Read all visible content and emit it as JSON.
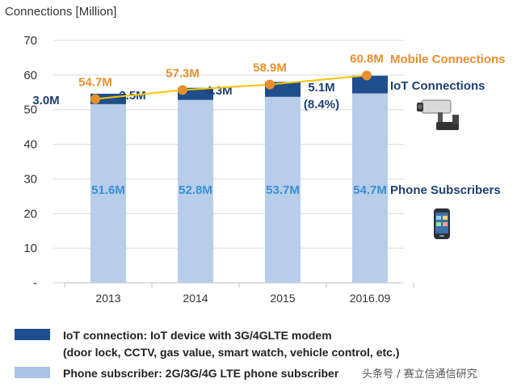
{
  "chart_data": {
    "type": "bar",
    "ylabel": "Connections [Million]",
    "ylim": [
      0,
      70
    ],
    "yticks": [
      {
        "value": 0,
        "label": "-"
      },
      {
        "value": 10,
        "label": "10"
      },
      {
        "value": 20,
        "label": "20"
      },
      {
        "value": 30,
        "label": "30"
      },
      {
        "value": 40,
        "label": "40"
      },
      {
        "value": 50,
        "label": "50"
      },
      {
        "value": 60,
        "label": "60"
      },
      {
        "value": 70,
        "label": "70"
      }
    ],
    "grid": true,
    "categories": [
      "2013",
      "2014",
      "2015",
      "2016.09"
    ],
    "series": [
      {
        "name": "Phone Subscribers",
        "type": "stacked-bar",
        "color": "#b8cde9",
        "values": [
          51.6,
          52.8,
          53.7,
          54.7
        ],
        "data_labels": [
          "51.6M",
          "52.8M",
          "53.7M",
          "54.7M"
        ]
      },
      {
        "name": "IoT Connections",
        "type": "stacked-bar",
        "color": "#1f4e8c",
        "values": [
          3.0,
          3.5,
          4.3,
          5.1
        ],
        "data_labels": [
          "3.0M",
          "3.5M",
          "4.3M",
          "5.1M"
        ],
        "extra_label": "(8.4%)"
      },
      {
        "name": "Mobile Connections",
        "type": "line",
        "color": "#e8902e",
        "values": [
          54.7,
          57.3,
          58.9,
          60.8
        ],
        "data_labels": [
          "54.7M",
          "57.3M",
          "58.9M",
          "60.8M"
        ]
      }
    ],
    "side_labels": {
      "mobile": "Mobile Connections",
      "iot": "IoT Connections",
      "phone": "Phone Subscribers"
    },
    "icons": [
      "cctv-camera-icon",
      "smartphone-icon"
    ]
  },
  "legend": {
    "iot": {
      "color": "#1f4e8c",
      "line1": "IoT connection: IoT device with 3G/4GLTE modem",
      "line2": "(door lock, CCTV, gas value, smart watch, vehicle control, etc.)"
    },
    "phone": {
      "color": "#a9c4e4",
      "line1": "Phone subscriber: 2G/3G/4G LTE phone subscriber"
    }
  },
  "watermark": "头条号 / 赛立信通信研究"
}
